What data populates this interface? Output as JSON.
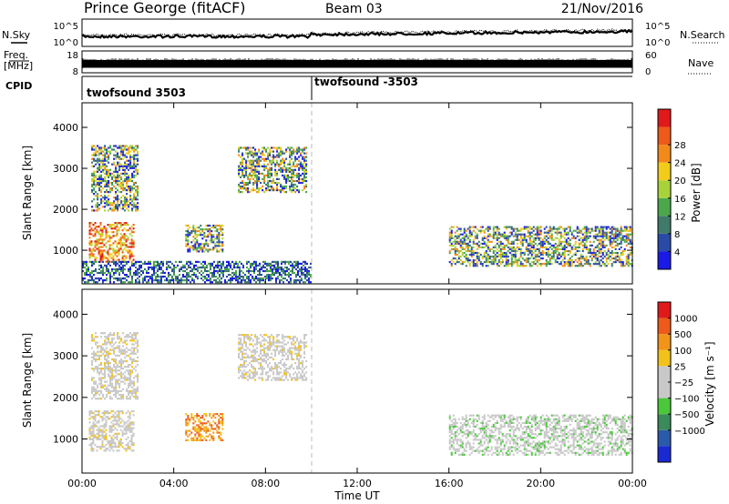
{
  "header": {
    "title": "Prince George (fitACF)",
    "beam": "Beam 03",
    "date": "21/Nov/2016"
  },
  "status_rows": {
    "nsky_label": "N.Sky",
    "nsky_ticks": [
      "10^5",
      "10^0"
    ],
    "nsearch_label": "N.Search",
    "nsearch_ticks": [
      "10^5",
      "10^0"
    ],
    "freq_label": "Freq.",
    "freq_unit": "[MHz]",
    "freq_ticks": [
      "18",
      "8"
    ],
    "nave_label": "Nave",
    "nave_ticks": [
      "60",
      "0"
    ],
    "cpid_label": "CPID",
    "cpid_segments": [
      "twofsound 3503",
      "twofsound -3503"
    ]
  },
  "x_axis": {
    "label": "Time UT",
    "ticks": [
      "00:00",
      "04:00",
      "08:00",
      "12:00",
      "16:00",
      "20:00",
      "00:00"
    ]
  },
  "colors": {
    "power_scale": [
      "#1a1ae6",
      "#2a4aa8",
      "#3f7a6a",
      "#4aa84a",
      "#a8d23a",
      "#f2cc1a",
      "#f28a1a",
      "#ee5a1a",
      "#e01a1a"
    ],
    "velocity_scale": [
      "#e01a1a",
      "#ee5a1a",
      "#f2941a",
      "#f2c21a",
      "#c8c8c8",
      "#c8c8c8",
      "#4ac83a",
      "#3a8a5a",
      "#2a5aaa",
      "#1a2ad2"
    ]
  },
  "chart_data": [
    {
      "type": "heatmap",
      "title": "",
      "xlabel": "Time UT",
      "ylabel": "Slant Range [km]",
      "x_range": [
        "00:00",
        "24:00"
      ],
      "ylim": [
        180,
        4600
      ],
      "yticks": [
        "1000",
        "2000",
        "3000",
        "4000"
      ],
      "colorbar_label": "Power [dB]",
      "colorbar_ticks": [
        "4",
        "8",
        "12",
        "16",
        "20",
        "24",
        "28"
      ],
      "colorbar_range": [
        0,
        30
      ],
      "scatter_regions": [
        {
          "t_start": 0.3,
          "t_end": 2.3,
          "r_min": 700,
          "r_max": 1650,
          "level": "high"
        },
        {
          "t_start": 0.4,
          "t_end": 2.5,
          "r_min": 1950,
          "r_max": 3550,
          "level": "medium"
        },
        {
          "t_start": 4.5,
          "t_end": 6.2,
          "r_min": 950,
          "r_max": 1600,
          "level": "medium"
        },
        {
          "t_start": 6.8,
          "t_end": 9.8,
          "r_min": 2400,
          "r_max": 3500,
          "level": "medium"
        },
        {
          "t_start": 16.0,
          "t_end": 24.0,
          "r_min": 600,
          "r_max": 1550,
          "level": "medium"
        },
        {
          "t_start": 0.0,
          "t_end": 10.0,
          "r_min": 200,
          "r_max": 700,
          "level": "low"
        }
      ]
    },
    {
      "type": "heatmap",
      "title": "",
      "xlabel": "Time UT",
      "ylabel": "Slant Range [km]",
      "x_range": [
        "00:00",
        "24:00"
      ],
      "ylim": [
        180,
        4600
      ],
      "yticks": [
        "1000",
        "2000",
        "3000",
        "4000"
      ],
      "colorbar_label": "Velocity [m s⁻¹]",
      "colorbar_ticks": [
        "1000",
        "500",
        "100",
        "25",
        "−25",
        "−100",
        "−500",
        "−1000"
      ],
      "scatter_regions": [
        {
          "t_start": 0.3,
          "t_end": 2.3,
          "r_min": 700,
          "r_max": 1650,
          "level": "ground-scatter"
        },
        {
          "t_start": 0.4,
          "t_end": 2.5,
          "r_min": 1950,
          "r_max": 3550,
          "level": "ground-scatter"
        },
        {
          "t_start": 4.5,
          "t_end": 6.2,
          "r_min": 950,
          "r_max": 1600,
          "level": "negative"
        },
        {
          "t_start": 6.8,
          "t_end": 9.8,
          "r_min": 2400,
          "r_max": 3500,
          "level": "ground-scatter"
        },
        {
          "t_start": 16.0,
          "t_end": 24.0,
          "r_min": 600,
          "r_max": 1550,
          "level": "mixed"
        }
      ]
    }
  ]
}
